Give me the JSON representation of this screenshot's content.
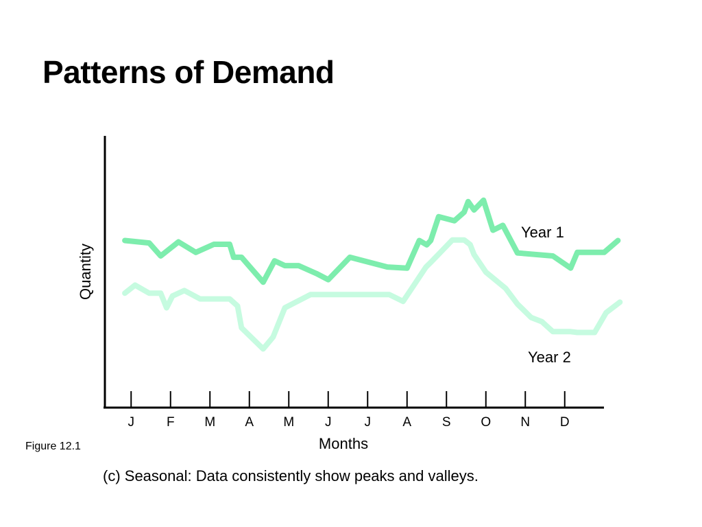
{
  "slide": {
    "title": "Patterns of Demand",
    "figure_label": "Figure 12.1",
    "caption": "(c) Seasonal: Data consistently show peaks and valleys."
  },
  "chart_data": {
    "type": "line",
    "title": "",
    "xlabel": "Months",
    "ylabel": "Quantity",
    "categories": [
      "J",
      "F",
      "M",
      "A",
      "M",
      "J",
      "J",
      "A",
      "S",
      "O",
      "N",
      "D"
    ],
    "x_range": [
      0.3,
      12.9
    ],
    "ylim": [
      0,
      100
    ],
    "grid": false,
    "legend": "inline labels beside lines",
    "series": [
      {
        "name": "Year 1",
        "color": "#7dedad",
        "x": [
          0.34,
          0.96,
          1.25,
          1.7,
          2.14,
          2.6,
          3.0,
          3.1,
          3.3,
          3.85,
          4.14,
          4.4,
          4.75,
          5.2,
          5.5,
          6.05,
          7.0,
          7.5,
          7.81,
          8.0,
          8.1,
          8.3,
          8.7,
          8.95,
          9.05,
          9.2,
          9.44,
          9.68,
          9.93,
          10.3,
          11.2,
          11.65,
          11.82,
          12.5,
          12.85
        ],
        "y": [
          61.8,
          60.9,
          56.1,
          61.3,
          57.4,
          60.4,
          60.4,
          55.6,
          55.6,
          46.4,
          54.3,
          52.5,
          52.5,
          49.6,
          47.3,
          55.6,
          52.0,
          51.6,
          61.8,
          60.2,
          61.8,
          70.6,
          69.1,
          72.3,
          76.2,
          73.1,
          76.7,
          65.6,
          67.4,
          57.2,
          56.1,
          51.6,
          57.4,
          57.4,
          61.8
        ]
      },
      {
        "name": "Year 2",
        "color": "#c6fbe0",
        "x": [
          0.34,
          0.6,
          0.96,
          1.25,
          1.4,
          1.55,
          1.85,
          2.25,
          3.0,
          3.2,
          3.3,
          3.85,
          4.1,
          4.4,
          5.05,
          5.5,
          6.5,
          7.05,
          7.4,
          7.62,
          7.98,
          8.1,
          8.65,
          8.95,
          9.1,
          9.2,
          9.5,
          10.0,
          10.3,
          10.65,
          10.92,
          11.2,
          11.65,
          11.82,
          12.26,
          12.55,
          12.9
        ],
        "y": [
          42.3,
          45.3,
          42.3,
          42.3,
          36.9,
          41.3,
          43.3,
          40.2,
          40.2,
          37.6,
          29.5,
          21.7,
          26.1,
          36.9,
          41.8,
          41.8,
          41.8,
          41.8,
          39.3,
          44.1,
          52.0,
          53.7,
          62.0,
          62.0,
          60.3,
          56.6,
          50.1,
          44.1,
          38.3,
          33.3,
          31.8,
          28.1,
          28.1,
          27.8,
          27.8,
          35.1,
          39.0
        ]
      }
    ]
  }
}
